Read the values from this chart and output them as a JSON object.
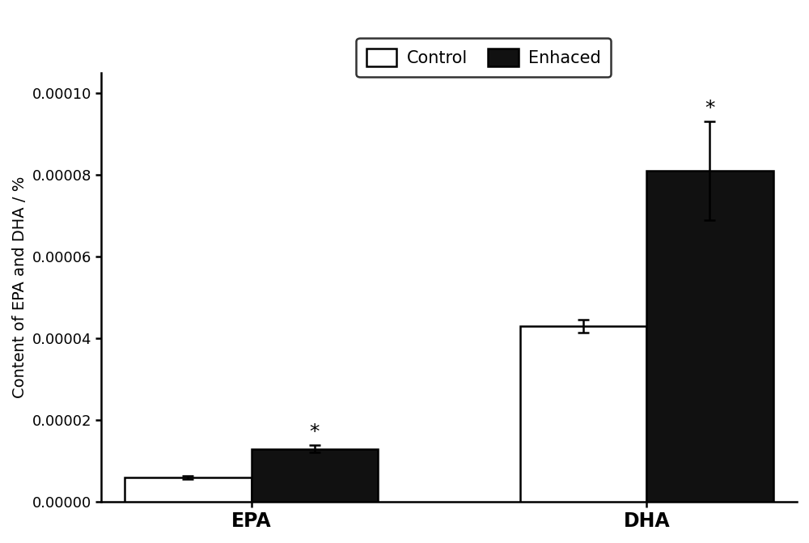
{
  "categories": [
    "EPA",
    "DHA"
  ],
  "control_values": [
    6e-06,
    4.3e-05
  ],
  "enhanced_values": [
    1.3e-05,
    8.1e-05
  ],
  "control_errors": [
    4e-07,
    1.5e-06
  ],
  "enhanced_errors": [
    8e-07,
    1.2e-05
  ],
  "control_color": "#ffffff",
  "enhanced_color": "#111111",
  "bar_edge_color": "#000000",
  "ylabel": "Content of EPA and DHA / %",
  "ylim": [
    0,
    0.000105
  ],
  "yticks": [
    0.0,
    2e-05,
    4e-05,
    6e-05,
    8e-05,
    0.0001
  ],
  "legend_labels": [
    "Control",
    "Enhaced"
  ],
  "significance_label": "*",
  "bar_width": 0.32,
  "figure_width": 10.0,
  "figure_height": 6.71,
  "dpi": 100,
  "background_color": "#ffffff",
  "fontsize_ticks": 13,
  "fontsize_ylabel": 14,
  "fontsize_legend": 15,
  "fontsize_star": 18,
  "fontsize_xlabel": 17,
  "linewidth": 1.8,
  "capsize": 5,
  "group_centers": [
    0.38,
    1.38
  ]
}
